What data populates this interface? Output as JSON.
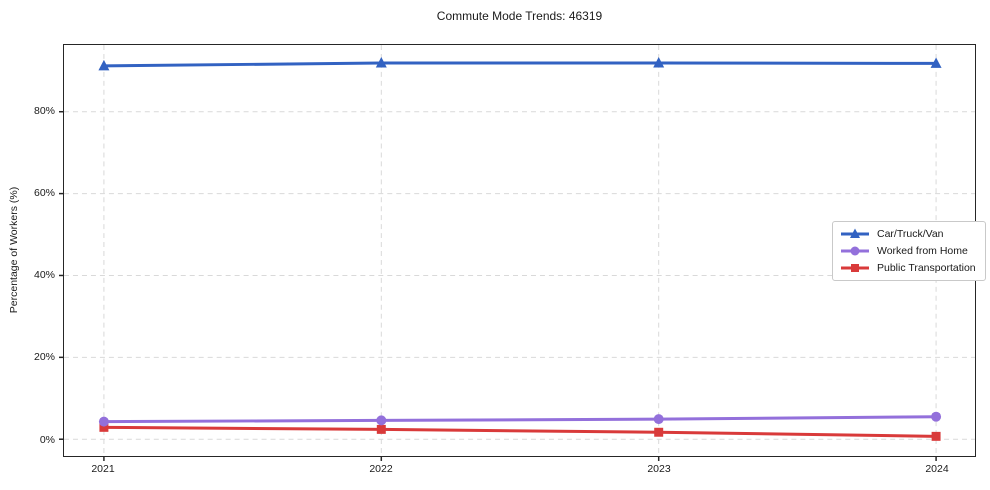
{
  "chart_data": {
    "type": "line",
    "title": "Commute Mode Trends: 46319",
    "xlabel": "",
    "ylabel": "Percentage of Workers (%)",
    "x_tick_labels": [
      "2021",
      "2022",
      "2023",
      "2024"
    ],
    "y_ticks": [
      0,
      20,
      40,
      60,
      80
    ],
    "y_tick_labels": [
      "0%",
      "20%",
      "40%",
      "60%",
      "80%"
    ],
    "ylim": [
      -4.1,
      96.3
    ],
    "grid": true,
    "legend_position": "center-right",
    "series": [
      {
        "name": "Car/Truck/Van",
        "color": "#3262c2",
        "marker": "triangle",
        "values": [
          91.2,
          91.9,
          91.9,
          91.8
        ]
      },
      {
        "name": "Worked from Home",
        "color": "#9370db",
        "marker": "circle",
        "values": [
          4.3,
          4.6,
          4.9,
          5.5
        ]
      },
      {
        "name": "Public Transportation",
        "color": "#d93a3a",
        "marker": "square",
        "values": [
          2.9,
          2.4,
          1.7,
          0.7
        ]
      }
    ]
  },
  "colors": {
    "gridline": "#d9d9d9",
    "axis": "#262626",
    "text": "#1a1a1a",
    "legend_border": "#c9c9c9",
    "background": "#ffffff"
  }
}
